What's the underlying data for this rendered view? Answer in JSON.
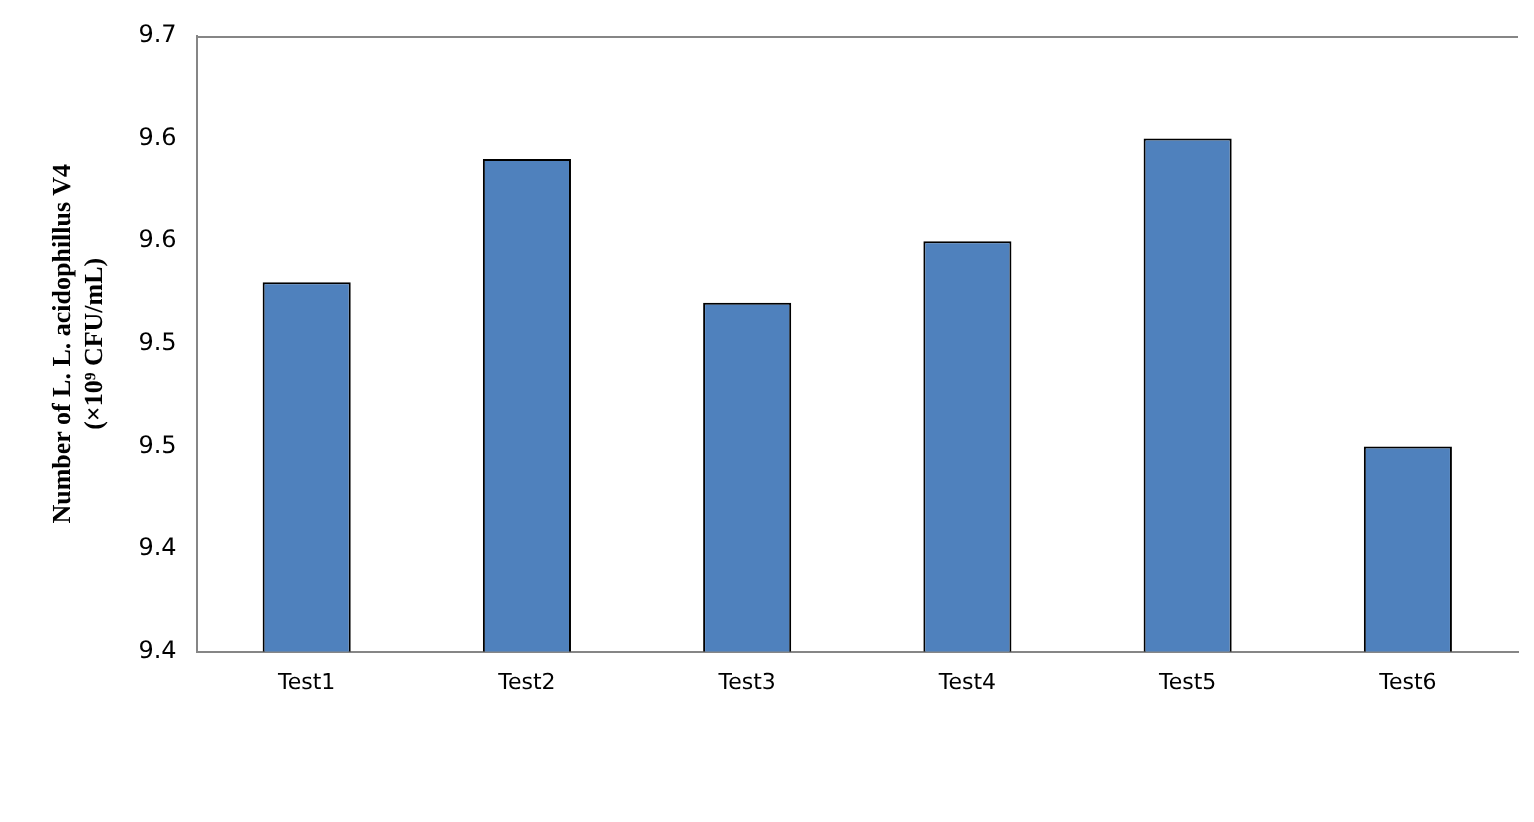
{
  "chart_data": {
    "type": "bar",
    "ylabel": "Number of L. L. acidophillus V4\n(×10⁹ CFU/mL)",
    "categories": [
      "Test1",
      "Test2",
      "Test3",
      "Test4",
      "Test5",
      "Test6"
    ],
    "values": [
      9.58,
      9.64,
      9.57,
      9.6,
      9.65,
      9.5
    ],
    "color": "#4f81bd",
    "ylim": [
      9.4,
      9.7
    ],
    "yticks": [
      {
        "value": 9.4,
        "label": "9.4"
      },
      {
        "value": 9.45,
        "label": "9.4"
      },
      {
        "value": 9.5,
        "label": "9.5"
      },
      {
        "value": 9.55,
        "label": "9.5"
      },
      {
        "value": 9.6,
        "label": "9.6"
      },
      {
        "value": 9.65,
        "label": "9.6"
      },
      {
        "value": 9.7,
        "label": "9.7"
      }
    ],
    "grid": false,
    "legend": false
  }
}
